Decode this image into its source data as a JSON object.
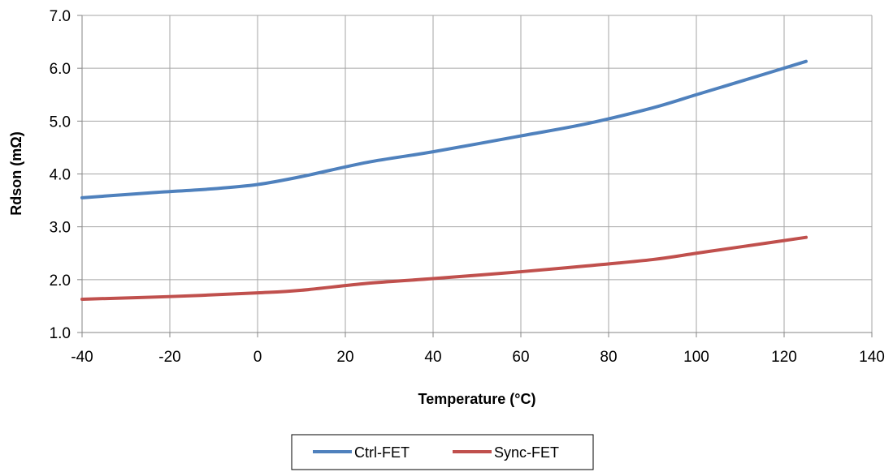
{
  "chart_data": {
    "type": "line",
    "title": "",
    "xlabel": "Temperature (°C)",
    "ylabel": "Rdson (mΩ)",
    "xlim": [
      -40,
      140
    ],
    "ylim": [
      1.0,
      7.0
    ],
    "x_ticks": [
      -40,
      -20,
      0,
      20,
      40,
      60,
      80,
      100,
      120,
      140
    ],
    "x_tick_labels": [
      "-40",
      "-20",
      "0",
      "20",
      "40",
      "60",
      "80",
      "100",
      "120",
      "140"
    ],
    "y_ticks": [
      1.0,
      2.0,
      3.0,
      4.0,
      5.0,
      6.0,
      7.0
    ],
    "y_tick_labels": [
      "1.0",
      "2.0",
      "3.0",
      "4.0",
      "5.0",
      "6.0",
      "7.0"
    ],
    "grid": true,
    "legend_position": "bottom",
    "series": [
      {
        "name": "Ctrl-FET",
        "color": "#4f81bd",
        "x": [
          -40,
          -25,
          -10,
          0,
          10,
          25,
          40,
          60,
          75,
          90,
          100,
          110,
          125
        ],
        "y": [
          3.55,
          3.64,
          3.72,
          3.8,
          3.95,
          4.22,
          4.42,
          4.72,
          4.95,
          5.25,
          5.5,
          5.75,
          6.13
        ]
      },
      {
        "name": "Sync-FET",
        "color": "#c0504d",
        "x": [
          -40,
          -20,
          0,
          10,
          25,
          40,
          60,
          75,
          90,
          100,
          110,
          125
        ],
        "y": [
          1.63,
          1.68,
          1.75,
          1.8,
          1.93,
          2.02,
          2.15,
          2.26,
          2.38,
          2.5,
          2.62,
          2.8
        ]
      }
    ]
  }
}
